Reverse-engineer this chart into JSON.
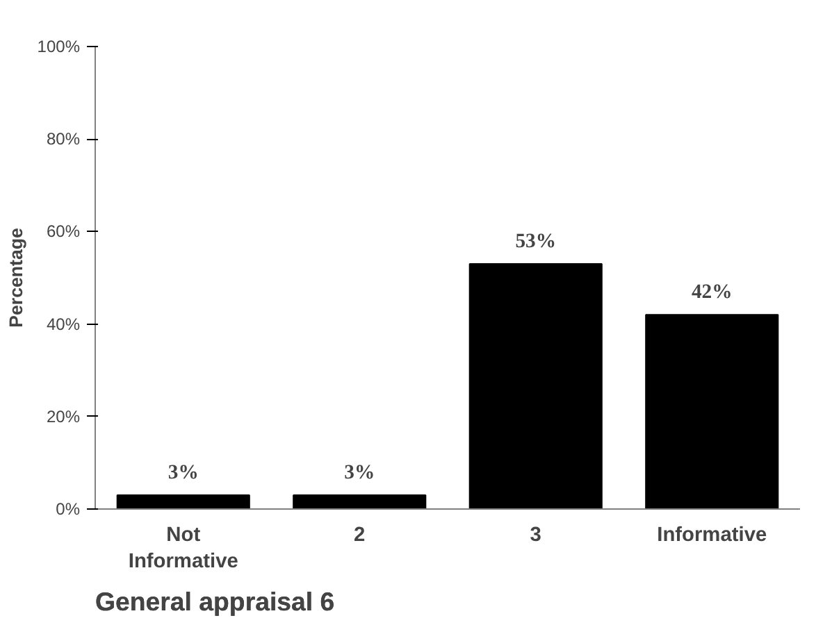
{
  "chart_data": {
    "type": "bar",
    "title": "General appraisal 6",
    "ylabel": "Percentage",
    "categories": [
      "Not Informative",
      "2",
      "3",
      "Informative"
    ],
    "values": [
      3,
      3,
      53,
      42
    ],
    "value_labels": [
      "3%",
      "3%",
      "53%",
      "42%"
    ],
    "color": "#000000",
    "ylim": [
      0,
      100
    ],
    "yticks": [
      {
        "value": 0,
        "label": "0%"
      },
      {
        "value": 20,
        "label": "20%"
      },
      {
        "value": 40,
        "label": "40%"
      },
      {
        "value": 60,
        "label": "60%"
      },
      {
        "value": 80,
        "label": "80%"
      },
      {
        "value": 100,
        "label": "100%"
      }
    ],
    "grid": false
  }
}
